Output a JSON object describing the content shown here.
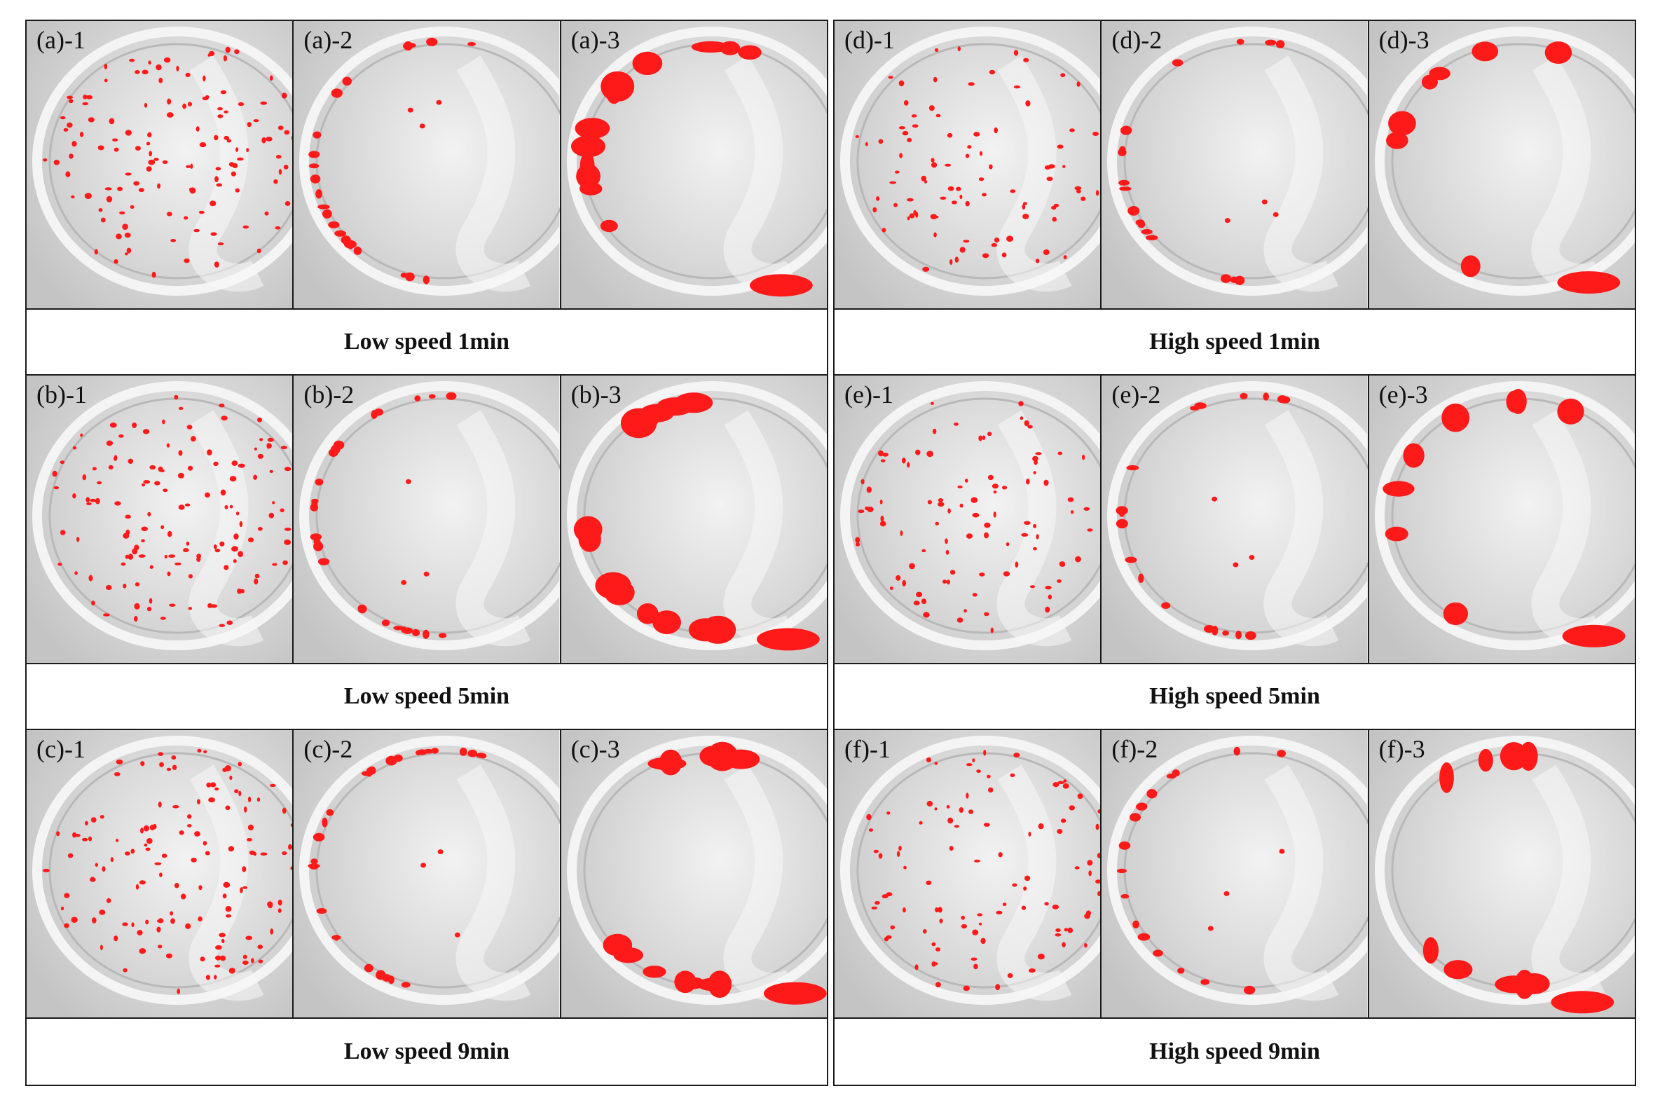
{
  "groups": [
    {
      "rows": [
        {
          "labels": [
            "(a)-1",
            "(a)-2",
            "(a)-3"
          ],
          "caption": "Low speed 1min"
        },
        {
          "labels": [
            "(b)-1",
            "(b)-2",
            "(b)-3"
          ],
          "caption": "Low speed 5min"
        },
        {
          "labels": [
            "(c)-1",
            "(c)-2",
            "(c)-3"
          ],
          "caption": "Low speed 9min"
        }
      ]
    },
    {
      "rows": [
        {
          "labels": [
            "(d)-1",
            "(d)-2",
            "(d)-3"
          ],
          "caption": "High speed 1min"
        },
        {
          "labels": [
            "(e)-1",
            "(e)-2",
            "(e)-3"
          ],
          "caption": "High speed 5min"
        },
        {
          "labels": [
            "(f)-1",
            "(f)-2",
            "(f)-3"
          ],
          "caption": "High speed 9min"
        }
      ]
    }
  ],
  "colors": {
    "bubble_mark": "#ff1a1a",
    "background": "#d6d6d6",
    "vessel": "#e9e9e9",
    "border": "#1a1a1a"
  }
}
